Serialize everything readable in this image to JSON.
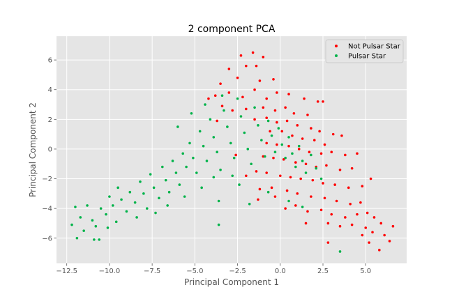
{
  "chart_data": {
    "type": "scatter",
    "title": "2 component PCA",
    "xlabel": "Principal Component 1",
    "ylabel": "Principal Component 2",
    "xlim": [
      -13.1,
      7.4
    ],
    "ylim": [
      -7.7,
      7.6
    ],
    "xticks": [
      -12.5,
      -10.0,
      -7.5,
      -5.0,
      -2.5,
      0.0,
      2.5,
      5.0
    ],
    "xtick_labels": [
      "−12.5",
      "−10.0",
      "−7.5",
      "−5.0",
      "−2.5",
      "0.0",
      "2.5",
      "5.0"
    ],
    "yticks": [
      -6,
      -4,
      -2,
      0,
      2,
      4,
      6
    ],
    "ytick_labels": [
      "−6",
      "−4",
      "−2",
      "0",
      "2",
      "4",
      "6"
    ],
    "grid": true,
    "legend_position": "top-right",
    "series": [
      {
        "name": "Not Pulsar Star",
        "color": "#ff0000",
        "points": [
          [
            -2.3,
            6.3
          ],
          [
            -1.6,
            6.5
          ],
          [
            -1.4,
            5.6
          ],
          [
            -1.0,
            6.2
          ],
          [
            -3.0,
            5.4
          ],
          [
            -2.0,
            5.6
          ],
          [
            -3.5,
            4.4
          ],
          [
            -2.5,
            4.8
          ],
          [
            -1.2,
            4.6
          ],
          [
            -0.4,
            4.7
          ],
          [
            -3.8,
            3.6
          ],
          [
            -3.0,
            3.8
          ],
          [
            -2.2,
            3.5
          ],
          [
            -1.5,
            4.0
          ],
          [
            -0.8,
            3.4
          ],
          [
            -0.2,
            3.8
          ],
          [
            0.5,
            3.7
          ],
          [
            1.4,
            3.4
          ],
          [
            2.2,
            3.2
          ],
          [
            2.5,
            3.2
          ],
          [
            -3.4,
            2.9
          ],
          [
            -2.8,
            2.6
          ],
          [
            -2.0,
            2.7
          ],
          [
            -1.0,
            2.8
          ],
          [
            -0.3,
            2.6
          ],
          [
            0.3,
            2.8
          ],
          [
            0.8,
            2.4
          ],
          [
            1.6,
            2.3
          ],
          [
            -4.2,
            3.4
          ],
          [
            -3.7,
            1.9
          ],
          [
            -1.5,
            2.0
          ],
          [
            -0.8,
            2.1
          ],
          [
            -0.2,
            1.8
          ],
          [
            0.4,
            1.9
          ],
          [
            1.0,
            1.6
          ],
          [
            1.8,
            1.4
          ],
          [
            2.3,
            1.2
          ],
          [
            3.1,
            1.0
          ],
          [
            -0.6,
            1.2
          ],
          [
            0.1,
            1.2
          ],
          [
            0.7,
            0.9
          ],
          [
            1.3,
            0.7
          ],
          [
            2.0,
            0.6
          ],
          [
            2.6,
            0.3
          ],
          [
            3.6,
            0.9
          ],
          [
            -0.8,
            0.4
          ],
          [
            -0.2,
            0.3
          ],
          [
            0.5,
            0.2
          ],
          [
            1.1,
            0.0
          ],
          [
            1.7,
            -0.2
          ],
          [
            2.4,
            -0.3
          ],
          [
            3.0,
            -0.2
          ],
          [
            3.8,
            -0.4
          ],
          [
            4.5,
            -0.3
          ],
          [
            -1.0,
            -0.5
          ],
          [
            -0.4,
            -0.6
          ],
          [
            0.2,
            -0.7
          ],
          [
            0.9,
            -0.9
          ],
          [
            1.5,
            -1.0
          ],
          [
            2.1,
            -1.2
          ],
          [
            2.7,
            -1.1
          ],
          [
            3.5,
            -1.4
          ],
          [
            4.2,
            -1.3
          ],
          [
            -1.4,
            -1.5
          ],
          [
            -0.8,
            -1.6
          ],
          [
            0.0,
            -1.8
          ],
          [
            0.6,
            -1.9
          ],
          [
            1.2,
            -2.0
          ],
          [
            1.9,
            -2.1
          ],
          [
            2.5,
            -2.3
          ],
          [
            3.2,
            -2.4
          ],
          [
            4.0,
            -2.6
          ],
          [
            4.8,
            -2.5
          ],
          [
            5.3,
            -2.0
          ],
          [
            -1.2,
            -2.7
          ],
          [
            -0.5,
            -2.6
          ],
          [
            0.4,
            -2.8
          ],
          [
            1.0,
            -3.0
          ],
          [
            1.8,
            -3.2
          ],
          [
            2.6,
            -3.3
          ],
          [
            3.3,
            -3.5
          ],
          [
            4.1,
            -3.7
          ],
          [
            4.7,
            -3.6
          ],
          [
            0.9,
            -3.8
          ],
          [
            1.6,
            -4.2
          ],
          [
            2.4,
            -4.1
          ],
          [
            3.0,
            -4.4
          ],
          [
            3.8,
            -4.6
          ],
          [
            4.5,
            -4.4
          ],
          [
            5.1,
            -4.3
          ],
          [
            2.8,
            -5.0
          ],
          [
            3.5,
            -5.2
          ],
          [
            4.2,
            -5.1
          ],
          [
            5.0,
            -5.3
          ],
          [
            5.5,
            -4.6
          ],
          [
            5.9,
            -5.0
          ],
          [
            4.8,
            -5.8
          ],
          [
            5.4,
            -5.6
          ],
          [
            6.1,
            -5.8
          ],
          [
            6.6,
            -5.2
          ],
          [
            5.2,
            -6.3
          ],
          [
            5.8,
            -6.8
          ],
          [
            6.4,
            -6.2
          ],
          [
            2.8,
            -6.3
          ],
          [
            1.5,
            -5.0
          ],
          [
            -0.3,
            -3.2
          ],
          [
            0.3,
            -4.0
          ],
          [
            -1.3,
            -3.4
          ],
          [
            -2.0,
            -1.8
          ],
          [
            -2.6,
            -0.4
          ]
        ]
      },
      {
        "name": "Pulsar Star",
        "color": "#00b34a",
        "points": [
          [
            -12.0,
            -3.9
          ],
          [
            -11.7,
            -4.6
          ],
          [
            -11.3,
            -3.8
          ],
          [
            -11.0,
            -4.8
          ],
          [
            -10.8,
            -5.2
          ],
          [
            -10.5,
            -4.0
          ],
          [
            -10.2,
            -4.4
          ],
          [
            -10.0,
            -3.2
          ],
          [
            -11.5,
            -5.5
          ],
          [
            -10.9,
            -6.1
          ],
          [
            -10.1,
            -5.3
          ],
          [
            -9.8,
            -3.8
          ],
          [
            -9.5,
            -2.6
          ],
          [
            -9.3,
            -3.4
          ],
          [
            -9.0,
            -4.2
          ],
          [
            -8.8,
            -2.9
          ],
          [
            -8.5,
            -3.6
          ],
          [
            -8.2,
            -2.2
          ],
          [
            -8.0,
            -3.0
          ],
          [
            -7.8,
            -4.0
          ],
          [
            -7.6,
            -1.7
          ],
          [
            -7.4,
            -2.6
          ],
          [
            -7.1,
            -3.3
          ],
          [
            -6.9,
            -1.2
          ],
          [
            -6.7,
            -2.1
          ],
          [
            -6.5,
            -2.9
          ],
          [
            -6.3,
            -0.8
          ],
          [
            -6.1,
            -1.6
          ],
          [
            -5.9,
            -2.4
          ],
          [
            -5.7,
            -0.3
          ],
          [
            -5.5,
            -1.2
          ],
          [
            -5.3,
            0.4
          ],
          [
            -5.1,
            -0.6
          ],
          [
            -4.9,
            -1.6
          ],
          [
            -4.7,
            1.2
          ],
          [
            -4.5,
            0.2
          ],
          [
            -4.3,
            -0.8
          ],
          [
            -4.1,
            2.0
          ],
          [
            -3.9,
            0.8
          ],
          [
            -3.7,
            -0.2
          ],
          [
            -3.5,
            -1.4
          ],
          [
            -3.3,
            2.6
          ],
          [
            -3.1,
            1.5
          ],
          [
            -2.9,
            0.4
          ],
          [
            -2.7,
            -0.6
          ],
          [
            -2.5,
            3.4
          ],
          [
            -2.3,
            2.2
          ],
          [
            -2.1,
            1.1
          ],
          [
            -1.9,
            0.0
          ],
          [
            -1.7,
            -1.0
          ],
          [
            -1.5,
            2.8
          ],
          [
            -1.3,
            1.6
          ],
          [
            -1.1,
            0.6
          ],
          [
            -0.9,
            -0.5
          ],
          [
            -0.7,
            1.9
          ],
          [
            -0.5,
            0.9
          ],
          [
            -0.3,
            -0.2
          ],
          [
            -0.1,
            1.4
          ],
          [
            0.1,
            0.3
          ],
          [
            0.3,
            -0.6
          ],
          [
            0.5,
            0.8
          ],
          [
            0.7,
            -0.3
          ],
          [
            0.9,
            -1.2
          ],
          [
            1.1,
            0.2
          ],
          [
            1.3,
            -0.8
          ],
          [
            1.5,
            -1.6
          ],
          [
            1.8,
            -0.4
          ],
          [
            2.1,
            -1.3
          ],
          [
            2.4,
            -2.0
          ],
          [
            -6.6,
            -3.8
          ],
          [
            -7.3,
            -4.3
          ],
          [
            -8.4,
            -4.6
          ],
          [
            -9.6,
            -4.9
          ],
          [
            -5.6,
            -3.2
          ],
          [
            -4.6,
            -2.6
          ],
          [
            -3.6,
            -3.5
          ],
          [
            -2.4,
            -2.4
          ],
          [
            -1.8,
            -3.7
          ],
          [
            -2.8,
            -1.8
          ],
          [
            -3.9,
            -1.9
          ],
          [
            -12.2,
            -5.1
          ],
          [
            -11.9,
            -6.0
          ],
          [
            -10.6,
            -6.1
          ],
          [
            -6.0,
            1.5
          ],
          [
            -5.2,
            2.4
          ],
          [
            -4.4,
            3.0
          ],
          [
            -3.4,
            3.6
          ],
          [
            -0.7,
            -2.9
          ],
          [
            0.5,
            -3.5
          ],
          [
            1.3,
            -3.9
          ],
          [
            3.5,
            -6.9
          ],
          [
            -3.6,
            -5.1
          ]
        ]
      }
    ]
  }
}
